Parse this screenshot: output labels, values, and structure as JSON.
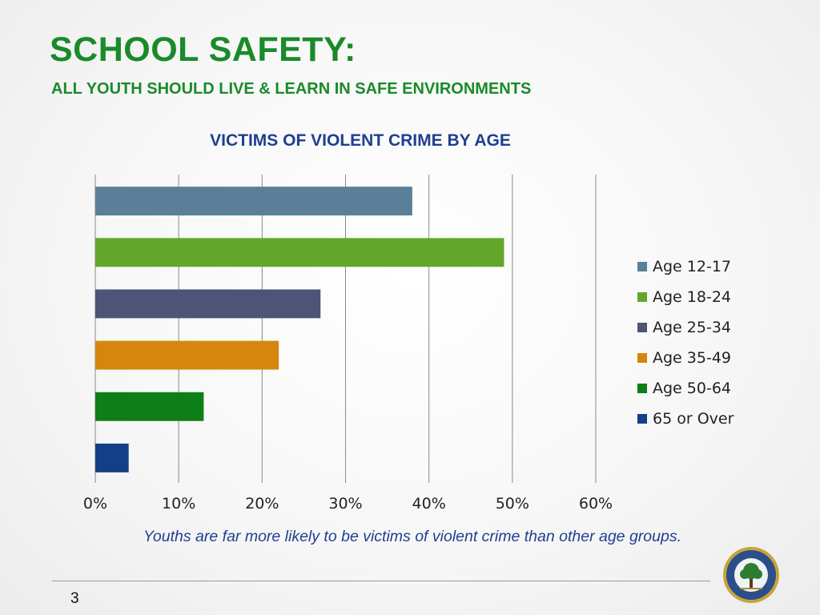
{
  "slide": {
    "title": "SCHOOL SAFETY:",
    "subtitle": "ALL YOUTH SHOULD LIVE & LEARN IN SAFE ENVIRONMENTS",
    "caption": "Youths are far more likely to be victims of violent crime than other age groups.",
    "page_number": "3"
  },
  "chart_data": {
    "type": "bar",
    "orientation": "horizontal",
    "title": "VICTIMS OF VIOLENT CRIME BY AGE",
    "xlabel": "",
    "ylabel": "",
    "xlim": [
      0,
      60
    ],
    "x_ticks": [
      0,
      10,
      20,
      30,
      40,
      50,
      60
    ],
    "x_tick_labels": [
      "0%",
      "10%",
      "20%",
      "30%",
      "40%",
      "50%",
      "60%"
    ],
    "unit": "%",
    "grid": "vertical",
    "legend_position": "right",
    "series": [
      {
        "name": "Age 12-17",
        "value": 38,
        "color": "#5b7f99"
      },
      {
        "name": "Age 18-24",
        "value": 49,
        "color": "#62a72c"
      },
      {
        "name": "Age 25-34",
        "value": 27,
        "color": "#4d5478"
      },
      {
        "name": "Age 35-49",
        "value": 22,
        "color": "#d6860f"
      },
      {
        "name": "Age 50-64",
        "value": 13,
        "color": "#0e7e18"
      },
      {
        "name": "65 or Over",
        "value": 4,
        "color": "#133f86"
      }
    ]
  }
}
